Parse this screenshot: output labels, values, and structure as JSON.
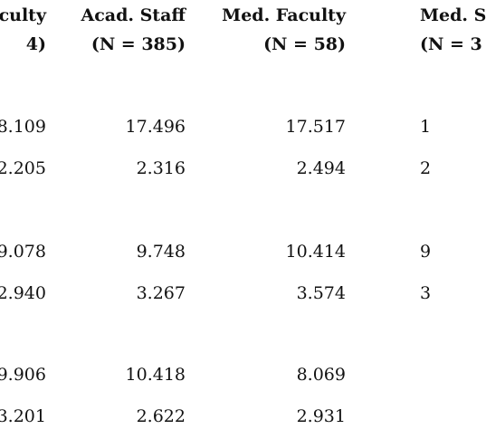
{
  "columns": [
    {
      "title": "aculty",
      "n": "4)"
    },
    {
      "title": "Acad. Staff",
      "n": "(N = 385)"
    },
    {
      "title": "Med. Faculty",
      "n": "(N = 58)"
    },
    {
      "title": "Med. S",
      "n": "(N = 3"
    }
  ],
  "rows": [
    {
      "c0": "8.109",
      "c1": "17.496",
      "c2": "17.517",
      "c3": "1"
    },
    {
      "c0": "2.205",
      "c1": "2.316",
      "c2": "2.494",
      "c3": "2"
    },
    {
      "c0": "9.078",
      "c1": "9.748",
      "c2": "10.414",
      "c3": "9"
    },
    {
      "c0": "2.940",
      "c1": "3.267",
      "c2": "3.574",
      "c3": "3"
    },
    {
      "c0": "9.906",
      "c1": "10.418",
      "c2": "8.069",
      "c3": ""
    },
    {
      "c0": "3.201",
      "c1": "2.622",
      "c2": "2.931",
      "c3": ""
    }
  ]
}
